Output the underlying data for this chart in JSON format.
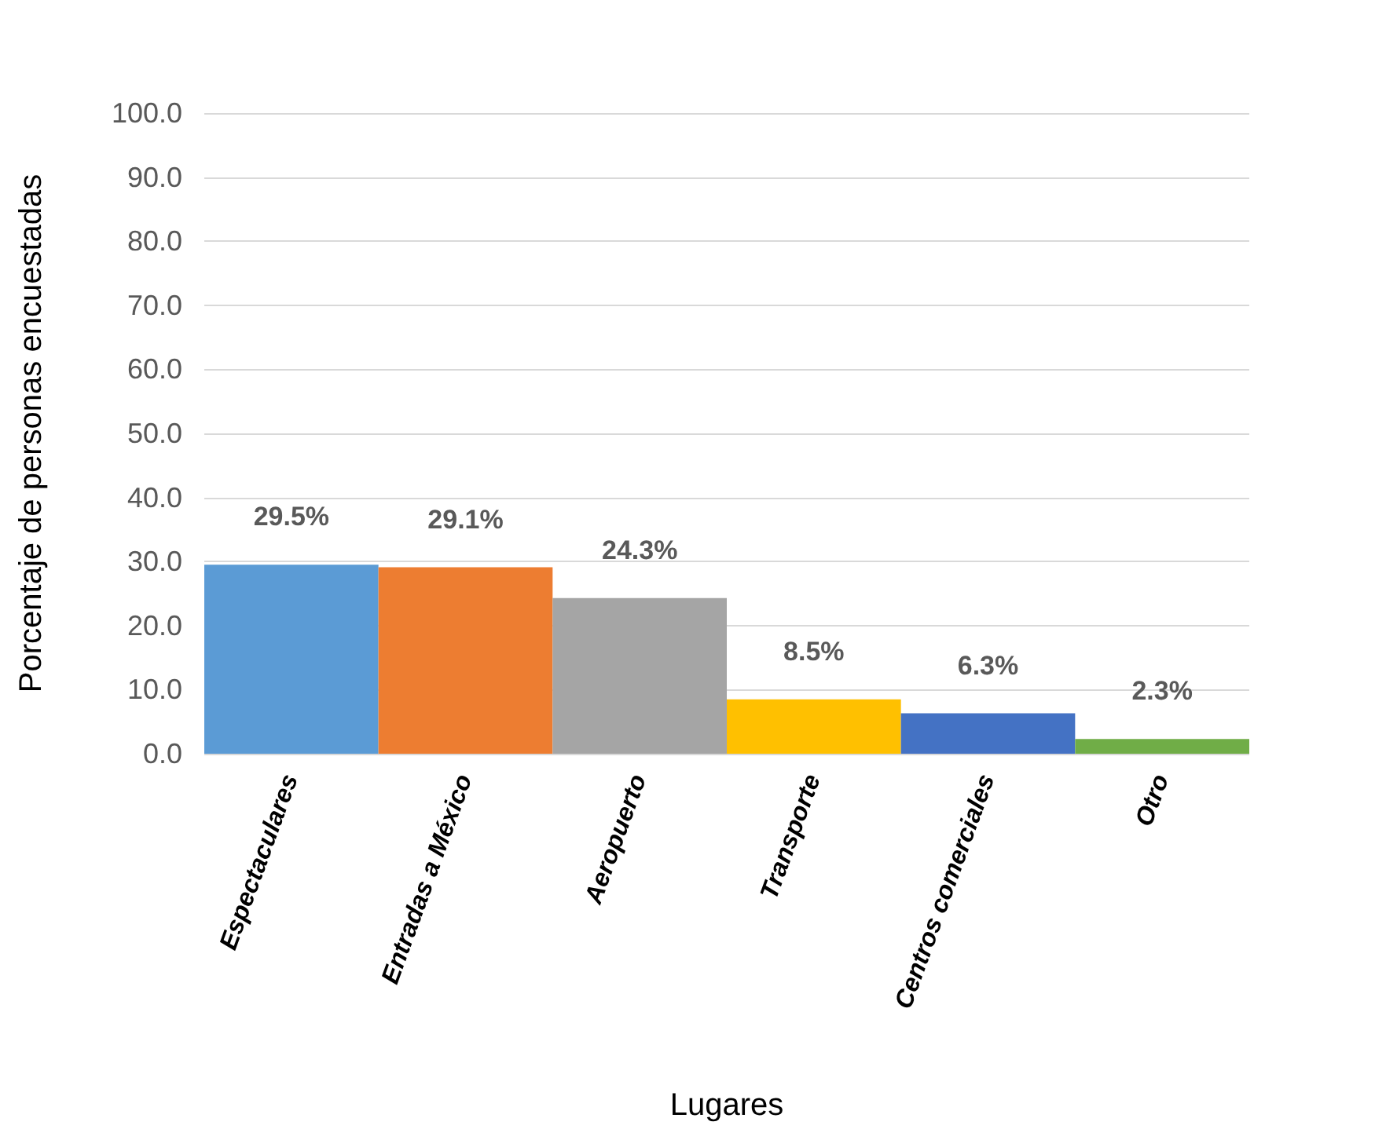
{
  "chart_data": {
    "type": "bar",
    "xlabel": "Lugares",
    "ylabel": "Porcentaje de personas encuestadas",
    "categories": [
      "Espectaculares",
      "Entradas a México",
      "Aeropuerto",
      "Transporte",
      "Centros comerciales",
      "Otro"
    ],
    "values": [
      29.5,
      29.1,
      24.3,
      8.5,
      6.3,
      2.3
    ],
    "colors": [
      "#5b9bd5",
      "#ed7d31",
      "#a5a5a5",
      "#ffc000",
      "#4472c4",
      "#70ad47"
    ],
    "value_labels": [
      "29.5%",
      "29.1%",
      "24.3%",
      "8.5%",
      "6.3%",
      "2.3%"
    ],
    "ylim": [
      0,
      100
    ],
    "yticks": [
      {
        "value": 0,
        "label": "0.0"
      },
      {
        "value": 10,
        "label": "10.0"
      },
      {
        "value": 20,
        "label": "20.0"
      },
      {
        "value": 30,
        "label": "30.0"
      },
      {
        "value": 40,
        "label": "40.0"
      },
      {
        "value": 50,
        "label": "50.0"
      },
      {
        "value": 60,
        "label": "60.0"
      },
      {
        "value": 70,
        "label": "70.0"
      },
      {
        "value": 80,
        "label": "80.0"
      },
      {
        "value": 90,
        "label": "90.0"
      },
      {
        "value": 100,
        "label": "100.0"
      }
    ],
    "grid": "y"
  }
}
